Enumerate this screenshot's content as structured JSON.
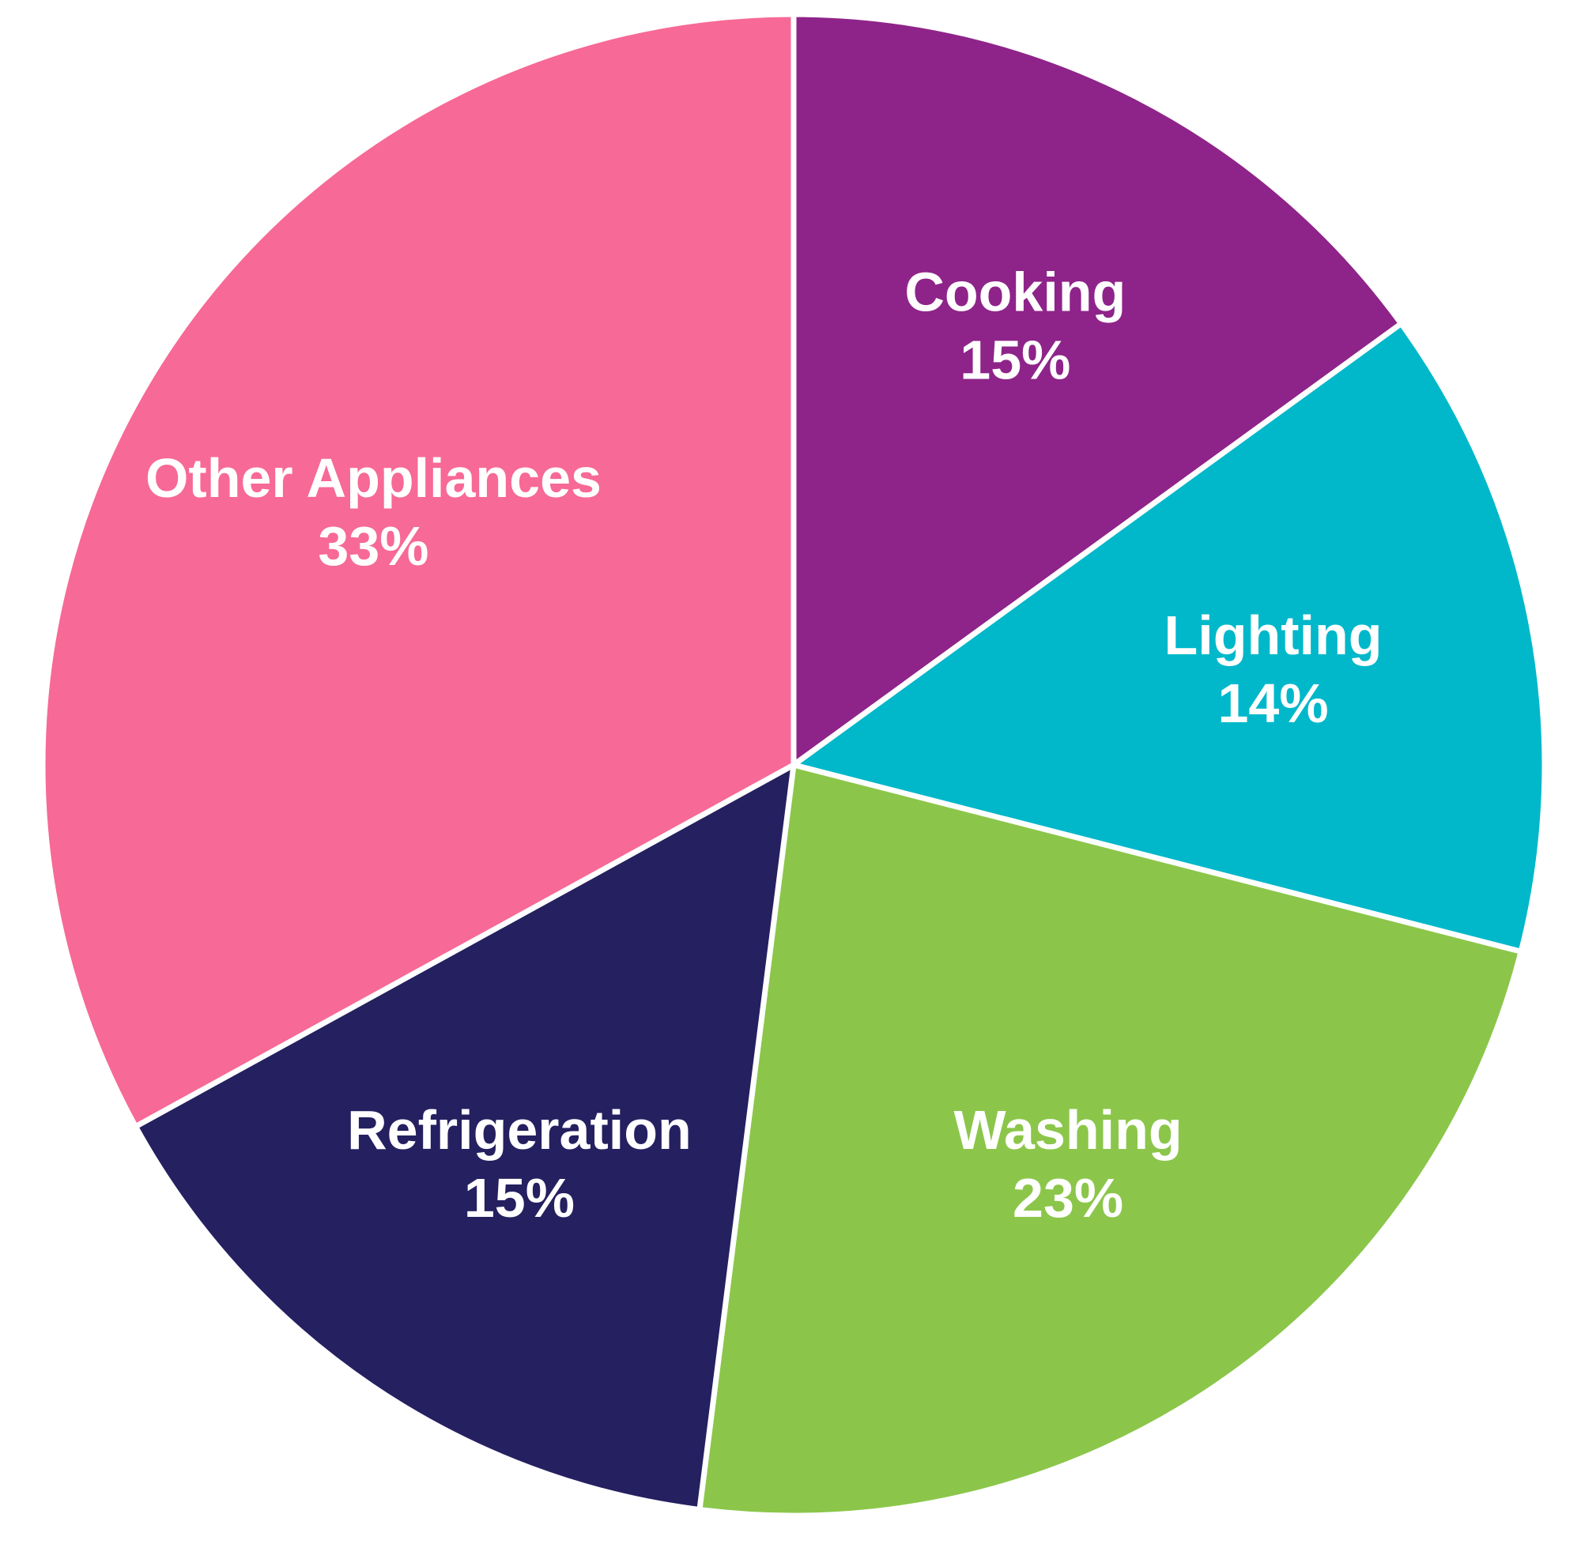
{
  "chart_data": {
    "type": "pie",
    "title": "",
    "start_angle_deg": 0,
    "direction": "clockwise",
    "slices": [
      {
        "label": "Cooking",
        "value": 15,
        "value_label": "15%",
        "color": "#8E2489"
      },
      {
        "label": "Lighting",
        "value": 14,
        "value_label": "14%",
        "color": "#00B8CA"
      },
      {
        "label": "Washing",
        "value": 23,
        "value_label": "23%",
        "color": "#8BC64A"
      },
      {
        "label": "Refrigeration",
        "value": 15,
        "value_label": "15%",
        "color": "#252060"
      },
      {
        "label": "Other Appliances",
        "value": 33,
        "value_label": "33%",
        "color": "#F76996"
      }
    ]
  }
}
